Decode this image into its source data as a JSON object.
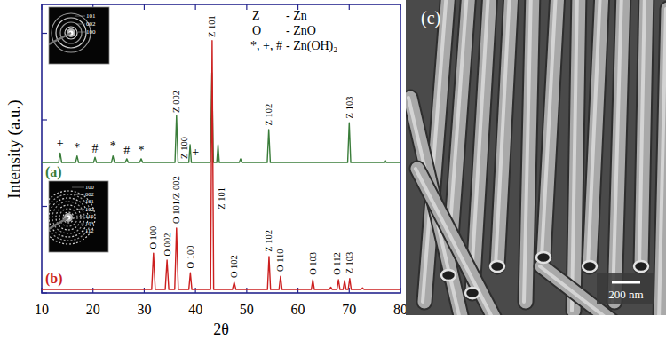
{
  "chart_data": {
    "type": "line",
    "x_label": "2θ",
    "y_label": "Intensity (a.u.)",
    "xlim": [
      10,
      80
    ],
    "xticks": [
      10,
      20,
      30,
      40,
      50,
      60,
      70,
      80
    ],
    "ylim": [
      0,
      100
    ],
    "yticks": [
      0,
      30,
      60,
      90
    ],
    "tick_labels": "x",
    "series": [
      {
        "name": "(a)",
        "color": "#3a7d3a",
        "x": [
          10,
          13.3,
          13.6,
          13.9,
          16.6,
          16.9,
          17.2,
          20.1,
          20.4,
          20.7,
          23.6,
          23.9,
          24.2,
          26.3,
          26.6,
          26.9,
          29.1,
          29.4,
          29.7,
          36.0,
          36.3,
          36.6,
          38.7,
          38.95,
          39.2,
          42.9,
          43.2,
          43.5,
          44.15,
          44.4,
          44.65,
          48.55,
          48.8,
          49.05,
          54.0,
          54.3,
          54.6,
          69.7,
          70.0,
          70.3,
          76.75,
          77.0,
          77.25,
          80
        ],
        "values": [
          45.2,
          45.2,
          48.5,
          45.2,
          45.2,
          47.5,
          45.2,
          45.2,
          47.0,
          45.2,
          45.2,
          47.5,
          45.2,
          45.2,
          46.5,
          45.2,
          45.2,
          46.5,
          45.2,
          45.2,
          61.5,
          45.2,
          45.2,
          51.4,
          45.2,
          45.2,
          76.3,
          45.2,
          45.2,
          51.4,
          45.2,
          45.2,
          46.5,
          45.2,
          45.2,
          56.6,
          45.2,
          45.2,
          59.0,
          45.2,
          45.2,
          46.0,
          45.2,
          45.2
        ]
      },
      {
        "name": "(b)",
        "color": "#cc1f1f",
        "x": [
          10,
          31.45,
          31.8,
          32.15,
          34.1,
          34.45,
          34.8,
          35.95,
          36.3,
          36.65,
          38.7,
          39.0,
          39.3,
          42.95,
          43.25,
          43.55,
          47.2,
          47.55,
          47.9,
          54.05,
          54.35,
          54.65,
          56.3,
          56.6,
          56.9,
          62.6,
          62.9,
          63.2,
          66.1,
          66.4,
          66.7,
          67.6,
          67.9,
          68.2,
          68.8,
          69.1,
          69.4,
          69.8,
          70.1,
          70.4,
          72.3,
          72.6,
          72.9,
          80
        ],
        "values": [
          1.2,
          1.2,
          13.8,
          1.2,
          1.2,
          11.4,
          1.2,
          1.2,
          22.5,
          1.2,
          1.2,
          7.0,
          1.2,
          1.2,
          87.5,
          1.2,
          1.2,
          3.7,
          1.2,
          1.2,
          12.6,
          1.2,
          1.2,
          5.8,
          1.2,
          1.2,
          4.6,
          1.2,
          1.2,
          2.0,
          1.2,
          1.2,
          4.6,
          1.2,
          1.2,
          4.3,
          1.2,
          1.2,
          5.0,
          1.2,
          1.2,
          1.8,
          1.2,
          1.2
        ]
      }
    ],
    "annotations": [
      {
        "text": "+",
        "x": 13.6,
        "y": 50.5
      },
      {
        "text": "*",
        "x": 16.9,
        "y": 49
      },
      {
        "text": "#",
        "x": 20.4,
        "y": 48.5
      },
      {
        "text": "*",
        "x": 23.9,
        "y": 49.5
      },
      {
        "text": "#",
        "x": 26.6,
        "y": 48
      },
      {
        "text": "*",
        "x": 29.4,
        "y": 48
      },
      {
        "text": "+",
        "x": 40.0,
        "y": 47.5
      },
      {
        "text": "Z 002",
        "x": 36.3,
        "y": 62.5
      },
      {
        "text": "Z 100",
        "x": 37.75,
        "y": 46.5
      },
      {
        "text": "Z 101",
        "x": 43.2,
        "y": 88.6
      },
      {
        "text": "Z 102",
        "x": 54.3,
        "y": 58
      },
      {
        "text": "Z 103",
        "x": 70.0,
        "y": 60.5
      },
      {
        "text": "O 100",
        "x": 31.8,
        "y": 15.2
      },
      {
        "text": "O 002",
        "x": 34.45,
        "y": 12.8
      },
      {
        "text": "O 101/Z 002",
        "x": 36.3,
        "y": 24
      },
      {
        "text": "O 100",
        "x": 39.0,
        "y": 8.5
      },
      {
        "text": "Z 101",
        "x": 45.0,
        "y": 29
      },
      {
        "text": "O 102",
        "x": 47.55,
        "y": 5.2
      },
      {
        "text": "Z 102",
        "x": 54.35,
        "y": 14.2
      },
      {
        "text": "O 110",
        "x": 56.6,
        "y": 7.4
      },
      {
        "text": "O 103",
        "x": 62.9,
        "y": 6.2
      },
      {
        "text": "O 112",
        "x": 67.6,
        "y": 6.2
      },
      {
        "text": "Z 103",
        "x": 70.1,
        "y": 6.6
      }
    ],
    "key": [
      {
        "symbol": "Z",
        "label": "- Zn"
      },
      {
        "symbol": "O",
        "label": "- ZnO"
      },
      {
        "symbol": "*, +, #",
        "label": "- Zn(OH)₂"
      }
    ]
  },
  "insets": [
    {
      "labels": [
        "101",
        "002",
        "100"
      ]
    },
    {
      "labels": [
        "100",
        "002",
        "101",
        "102",
        "110",
        "103",
        "112"
      ]
    }
  ],
  "sem_panel": {
    "label": "(c)",
    "scale_bar": "200 nm"
  }
}
